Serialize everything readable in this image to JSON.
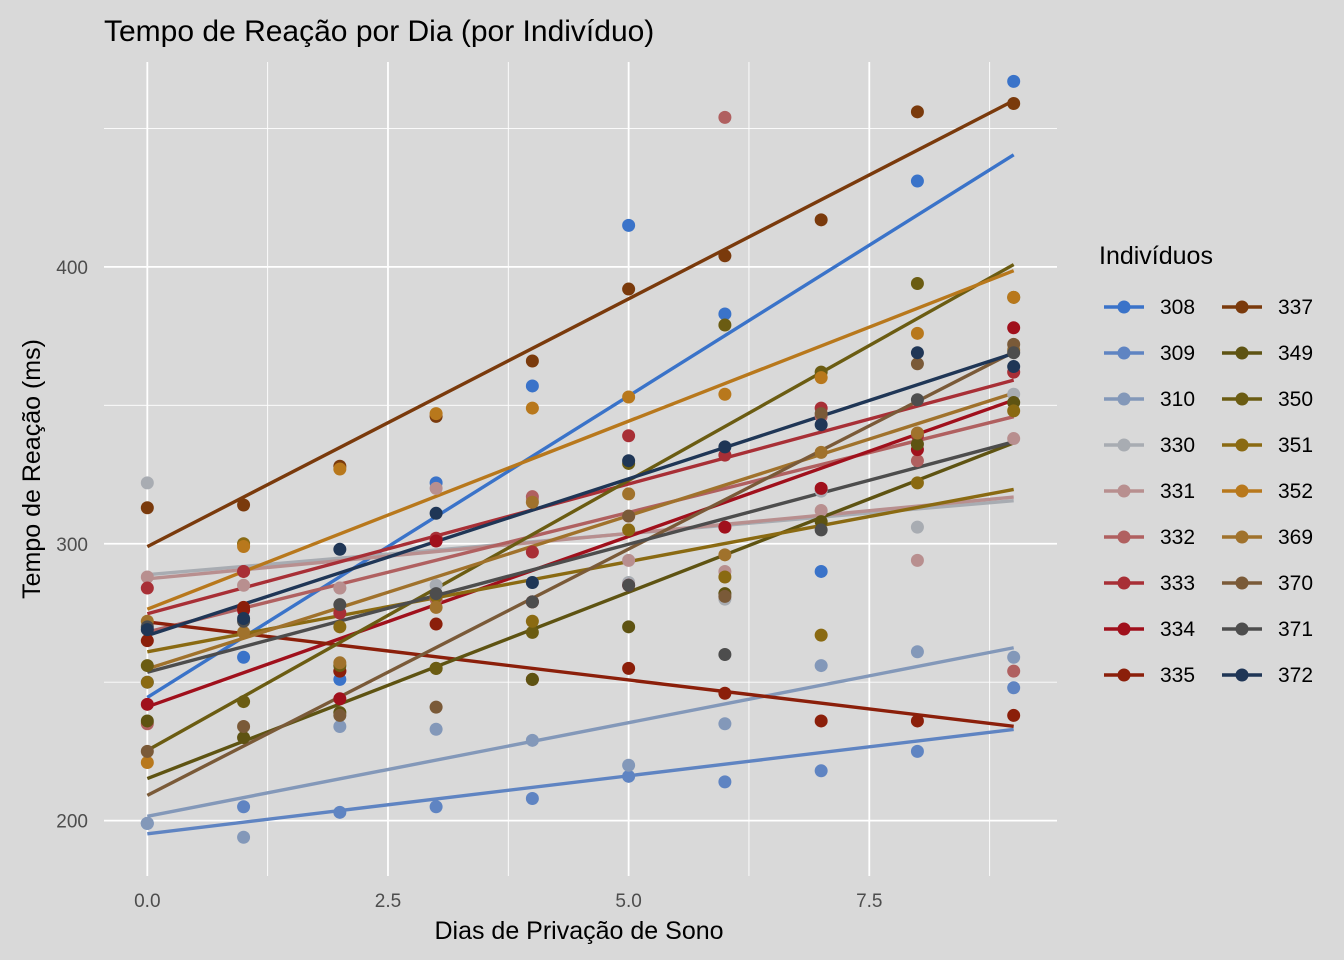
{
  "chart_data": {
    "type": "scatter",
    "title": "Tempo de Reação por Dia (por Indivíduo)",
    "xlabel": "Dias de Privação de Sono",
    "ylabel": "Tempo de Reação (ms)",
    "xlim": [
      -0.45,
      9.45
    ],
    "ylim": [
      180,
      474
    ],
    "x_ticks": [
      0.0,
      2.5,
      5.0,
      7.5
    ],
    "x_tick_labels": [
      "0.0",
      "2.5",
      "5.0",
      "7.5"
    ],
    "y_ticks": [
      200,
      300,
      400
    ],
    "y_tick_labels": [
      "200",
      "300",
      "400"
    ],
    "grid": true,
    "legend": {
      "title": "Indivíduos",
      "position": "right",
      "columns": 2
    },
    "trend": "linear fit per series",
    "x": [
      0,
      1,
      2,
      3,
      4,
      5,
      6,
      7,
      8,
      9
    ],
    "series": [
      {
        "name": "308",
        "color": "#3a73c9",
        "values": [
          250,
          259,
          251,
          322,
          357,
          415,
          383,
          290,
          431,
          467
        ]
      },
      {
        "name": "309",
        "color": "#5f84c2",
        "values": [
          199,
          205,
          203,
          205,
          208,
          216,
          214,
          218,
          225,
          248
        ]
      },
      {
        "name": "310",
        "color": "#8398b9",
        "values": [
          199,
          194,
          234,
          233,
          229,
          220,
          235,
          256,
          261,
          259
        ]
      },
      {
        "name": "330",
        "color": "#a8acb2",
        "values": [
          322,
          300,
          284,
          285,
          286,
          286,
          280,
          319,
          306,
          354
        ]
      },
      {
        "name": "331",
        "color": "#b88f8f",
        "values": [
          288,
          285,
          284,
          320,
          316,
          294,
          290,
          312,
          294,
          338
        ]
      },
      {
        "name": "332",
        "color": "#b06060",
        "values": [
          235,
          290,
          254,
          280,
          317,
          310,
          454,
          346,
          330,
          254
        ]
      },
      {
        "name": "333",
        "color": "#a82f36",
        "values": [
          284,
          290,
          275,
          302,
          297,
          339,
          332,
          349,
          339,
          362
        ]
      },
      {
        "name": "334",
        "color": "#a0101c",
        "values": [
          242,
          276,
          244,
          301,
          279,
          285,
          306,
          320,
          334,
          378
        ]
      },
      {
        "name": "335",
        "color": "#8b1f0a",
        "values": [
          265,
          277,
          254,
          271,
          251,
          255,
          246,
          236,
          236,
          238
        ]
      },
      {
        "name": "337",
        "color": "#7a3a0c",
        "values": [
          313,
          314,
          328,
          346,
          366,
          392,
          404,
          417,
          456,
          459
        ]
      },
      {
        "name": "349",
        "color": "#5e5312",
        "values": [
          236,
          230,
          239,
          255,
          251,
          270,
          282,
          308,
          336,
          351
        ]
      },
      {
        "name": "350",
        "color": "#6b5c12",
        "values": [
          256,
          243,
          256,
          255,
          268,
          329,
          379,
          362,
          394,
          389
        ]
      },
      {
        "name": "351",
        "color": "#8a6a12",
        "values": [
          250,
          300,
          270,
          281,
          272,
          305,
          288,
          267,
          322,
          348
        ]
      },
      {
        "name": "352",
        "color": "#b8781c",
        "values": [
          221,
          299,
          327,
          347,
          349,
          353,
          354,
          360,
          376,
          389
        ]
      },
      {
        "name": "369",
        "color": "#a0722c",
        "values": [
          272,
          268,
          257,
          277,
          315,
          318,
          296,
          333,
          340,
          370
        ]
      },
      {
        "name": "370",
        "color": "#7a5a38",
        "values": [
          225,
          234,
          238,
          241,
          279,
          310,
          281,
          347,
          365,
          372
        ]
      },
      {
        "name": "371",
        "color": "#4d4d4d",
        "values": [
          270,
          272,
          278,
          282,
          279,
          285,
          260,
          305,
          352,
          369
        ]
      },
      {
        "name": "372",
        "color": "#1f3656",
        "values": [
          269,
          273,
          298,
          311,
          286,
          330,
          335,
          343,
          369,
          364
        ]
      }
    ]
  }
}
